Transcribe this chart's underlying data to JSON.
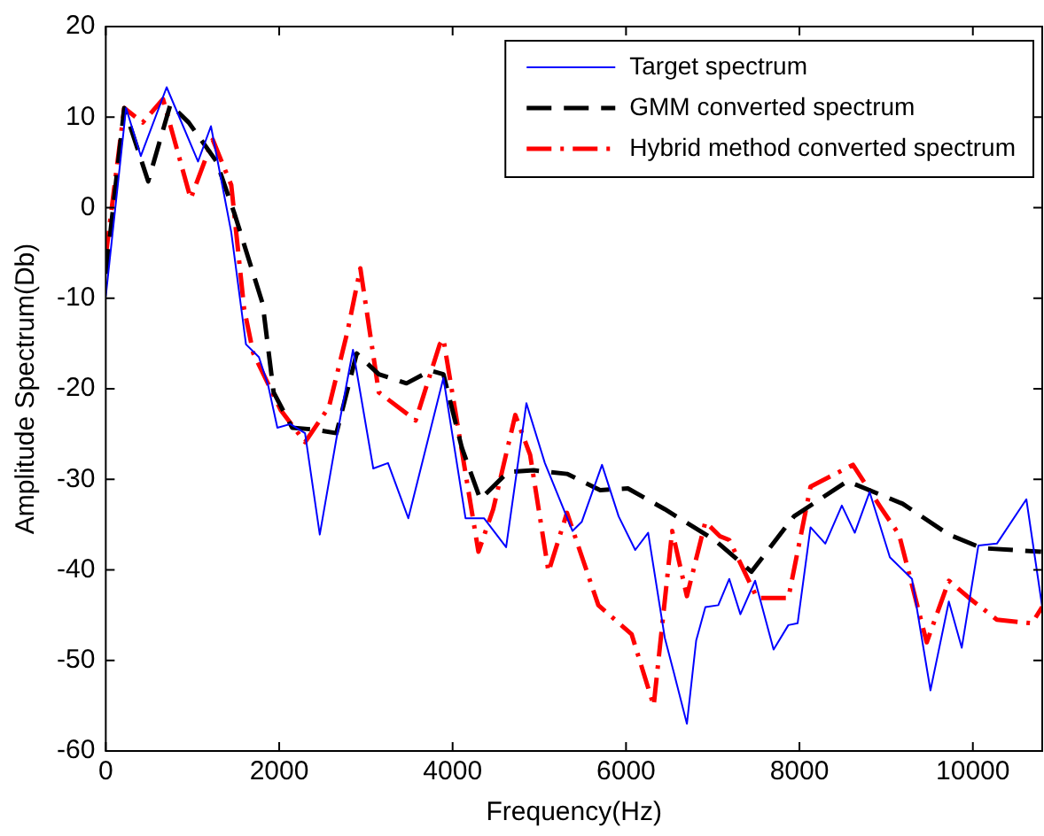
{
  "chart_data": {
    "type": "line",
    "xlabel": "Frequency(Hz)",
    "ylabel": "Amplitude Spectrum(Db)",
    "xlim": [
      0,
      10800
    ],
    "xticks": [
      0,
      2000,
      4000,
      6000,
      8000,
      10000
    ],
    "ylim": [
      -60,
      20
    ],
    "yticks": [
      -60,
      -50,
      -40,
      -30,
      -20,
      -10,
      0,
      10,
      20
    ],
    "grid": false,
    "legend": "top right",
    "marker": "none",
    "series": [
      {
        "name": "Target spectrum",
        "color": "#0000ff",
        "line_style": "solid",
        "x": [
          0,
          234,
          404,
          702,
          1064,
          1213,
          1447,
          1617,
          1766,
          1872,
          1979,
          2128,
          2298,
          2468,
          2660,
          2851,
          3085,
          3255,
          3489,
          3894,
          4149,
          4362,
          4617,
          4851,
          5064,
          5383,
          5489,
          5723,
          5915,
          6106,
          6255,
          6447,
          6553,
          6702,
          6809,
          6915,
          7064,
          7191,
          7319,
          7489,
          7702,
          7872,
          7979,
          8128,
          8298,
          8489,
          8638,
          8809,
          9043,
          9298,
          9511,
          9723,
          9872,
          10064,
          10277,
          10617,
          10800
        ],
        "values": [
          -9.8,
          11,
          5.7,
          13.3,
          5.1,
          9,
          -2.7,
          -15.1,
          -16.5,
          -19.6,
          -24.3,
          -23.9,
          -24.9,
          -36.1,
          -25.5,
          -15.7,
          -28.8,
          -28.2,
          -34.3,
          -18.8,
          -34.3,
          -34.3,
          -37.5,
          -21.6,
          -28.2,
          -35.7,
          -34.7,
          -28.4,
          -34.1,
          -37.8,
          -35.9,
          -47.5,
          -51.4,
          -57,
          -47.8,
          -44.1,
          -43.9,
          -41,
          -44.9,
          -41.2,
          -48.8,
          -46.1,
          -45.9,
          -35.3,
          -37.1,
          -32.9,
          -35.9,
          -31.4,
          -38.6,
          -41,
          -53.3,
          -43.5,
          -48.6,
          -37.3,
          -37.1,
          -32.2,
          -44.1
        ]
      },
      {
        "name": "GMM converted spectrum",
        "color": "#000000",
        "line_style": "dashed",
        "x": [
          0,
          213,
          489,
          745,
          957,
          1277,
          1489,
          1809,
          1936,
          2149,
          2404,
          2660,
          2894,
          3149,
          3468,
          3745,
          3894,
          4106,
          4319,
          4638,
          4936,
          5319,
          5702,
          6021,
          6447,
          7021,
          7447,
          7936,
          8553,
          9191,
          9723,
          10106,
          10787
        ],
        "values": [
          -7.3,
          11,
          2.9,
          11.4,
          9.4,
          5.1,
          -0.8,
          -10.6,
          -20.4,
          -24.3,
          -24.5,
          -24.9,
          -16.1,
          -18.4,
          -19.4,
          -18,
          -18.4,
          -26.5,
          -32.2,
          -29.2,
          -29,
          -29.4,
          -31.2,
          -31,
          -33.3,
          -36.7,
          -40.2,
          -34.1,
          -30.2,
          -32.7,
          -36.1,
          -37.6,
          -38
        ]
      },
      {
        "name": "Hybrid method converted spectrum",
        "color": "#ff0000",
        "line_style": "dashdot",
        "x": [
          0,
          213,
          426,
          660,
          979,
          1234,
          1447,
          1596,
          1702,
          2021,
          2298,
          2574,
          2787,
          2936,
          3149,
          3574,
          3851,
          3894,
          4298,
          4468,
          4723,
          4894,
          5106,
          5319,
          5681,
          6064,
          6319,
          6532,
          6702,
          6915,
          7085,
          7191,
          7511,
          7872,
          8128,
          8617,
          8936,
          9149,
          9468,
          9723,
          9957,
          10277,
          10681,
          10800
        ],
        "values": [
          -5.3,
          11,
          9.4,
          12,
          1,
          7.5,
          2.5,
          -11.2,
          -16.1,
          -22.4,
          -25.9,
          -22,
          -13.7,
          -6.7,
          -20.4,
          -23.5,
          -15.1,
          -14.5,
          -38,
          -33.3,
          -22.9,
          -27.3,
          -40.2,
          -33.7,
          -43.9,
          -47.1,
          -55,
          -35.7,
          -42.9,
          -34.7,
          -36.3,
          -36.7,
          -43.1,
          -43.1,
          -30.8,
          -28.4,
          -33.1,
          -36.1,
          -48,
          -41.2,
          -43.1,
          -45.5,
          -45.9,
          -44.1
        ]
      }
    ]
  }
}
